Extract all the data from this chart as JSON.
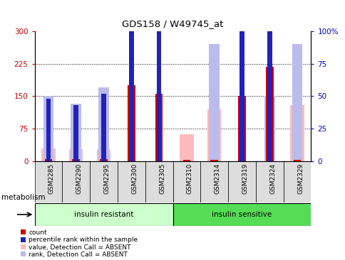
{
  "title": "GDS158 / W49745_at",
  "samples": [
    "GSM2285",
    "GSM2290",
    "GSM2295",
    "GSM2300",
    "GSM2305",
    "GSM2310",
    "GSM2314",
    "GSM2319",
    "GSM2324",
    "GSM2329"
  ],
  "count_values": [
    5,
    5,
    5,
    175,
    155,
    3,
    3,
    150,
    218,
    3
  ],
  "percentile_rank": [
    48,
    43,
    52,
    150,
    143,
    0,
    0,
    140,
    155,
    0
  ],
  "absent_value": [
    30,
    27,
    28,
    0,
    0,
    62,
    120,
    0,
    0,
    130
  ],
  "absent_rank": [
    50,
    44,
    57,
    0,
    0,
    0,
    90,
    0,
    50,
    90
  ],
  "groups": {
    "insulin resistant": [
      0,
      1,
      2,
      3,
      4
    ],
    "insulin sensitive": [
      5,
      6,
      7,
      8,
      9
    ]
  },
  "ylim_left": [
    0,
    300
  ],
  "ylim_right": [
    0,
    100
  ],
  "yticks_left": [
    0,
    75,
    150,
    225,
    300
  ],
  "yticks_right": [
    0,
    25,
    50,
    75,
    100
  ],
  "ytick_labels_left": [
    "0",
    "75",
    "150",
    "225",
    "300"
  ],
  "ytick_labels_right": [
    "0",
    "25",
    "50",
    "75",
    "100%"
  ],
  "color_count": "#cc0000",
  "color_rank": "#2222bb",
  "color_absent_value": "#ffbbbb",
  "color_absent_rank": "#bbbbee",
  "color_ir_bg": "#ccffcc",
  "color_is_bg": "#55dd55",
  "bar_width": 0.5,
  "tickbox_color": "#dddddd"
}
